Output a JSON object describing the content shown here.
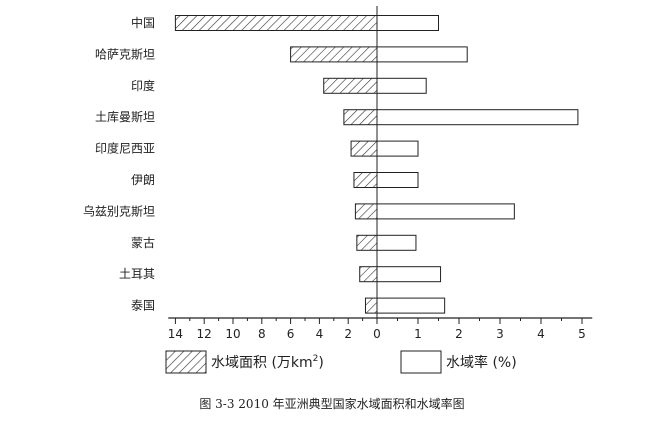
{
  "chart_data": {
    "type": "bar",
    "orientation": "horizontal-diverging",
    "categories": [
      "中国",
      "哈萨克斯坦",
      "印度",
      "土库曼斯坦",
      "印度尼西亚",
      "伊朗",
      "乌兹别克斯坦",
      "蒙古",
      "土耳其",
      "泰国"
    ],
    "series": [
      {
        "name": "水域面积",
        "unit": "万km²",
        "direction": "left",
        "pattern": "hatched",
        "values": [
          14.0,
          6.0,
          3.7,
          2.3,
          1.8,
          1.6,
          1.5,
          1.4,
          1.2,
          0.8
        ]
      },
      {
        "name": "水域率",
        "unit": "%",
        "direction": "right",
        "pattern": "open",
        "values": [
          1.5,
          2.2,
          1.2,
          4.9,
          1.0,
          1.0,
          3.35,
          0.95,
          1.55,
          1.65
        ]
      }
    ],
    "left_axis": {
      "ticks": [
        14,
        12,
        10,
        8,
        6,
        4,
        2,
        0
      ],
      "max": 14.5
    },
    "right_axis": {
      "ticks": [
        0,
        1,
        2,
        3,
        4,
        5
      ],
      "max": 5.25
    },
    "legend": [
      {
        "symbol": "hatched",
        "text_main": "水域面积 (万km",
        "sup": "2",
        "text_end": ")"
      },
      {
        "symbol": "open",
        "text": "水域率 (%)"
      }
    ],
    "legend_position": "bottom",
    "grid": false
  },
  "caption": "图 3-3  2010 年亚洲典型国家水域面积和水域率图",
  "colors": {
    "stroke": "#222222",
    "bar_fill": "#ffffff"
  }
}
